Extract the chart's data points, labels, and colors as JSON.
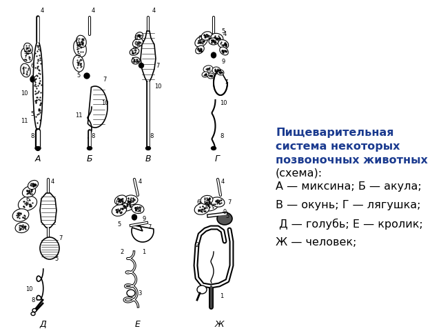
{
  "title_bold": "Пищеварительная\nсистема некоторых\nпозвоночных животных",
  "title_normal": "(схема):",
  "lines": [
    "А — миксина; Б — акула;",
    "В — окунь; Г — лягушка;",
    " Д — голубь; Е — кролик;",
    "Ж — человек;"
  ],
  "title_color": "#1a3a8f",
  "text_color": "#000000",
  "bg_color": "#ffffff",
  "title_fontsize": 11.5,
  "text_fontsize": 11.5,
  "fig_width": 6.4,
  "fig_height": 4.8,
  "dpi": 100
}
